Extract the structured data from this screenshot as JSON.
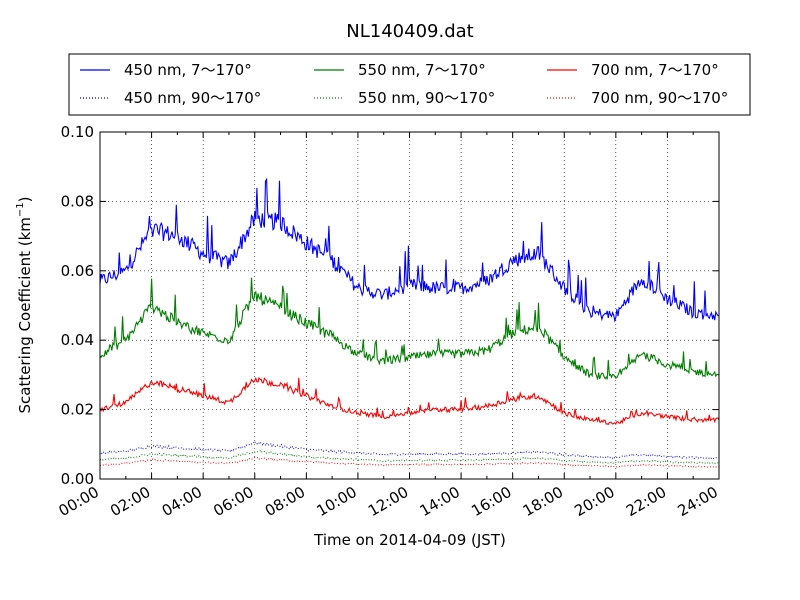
{
  "chart_data": {
    "type": "line",
    "title": "NL140409.dat",
    "xlabel": "Time on 2014-04-09 (JST)",
    "ylabel_main": "Scattering Coefficient (km",
    "ylabel_sup": "−1",
    "ylabel_end": ")",
    "xlim": [
      0,
      24
    ],
    "ylim": [
      0,
      0.1
    ],
    "x_ticks": [
      "00:00",
      "02:00",
      "04:00",
      "06:00",
      "08:00",
      "10:00",
      "12:00",
      "14:00",
      "16:00",
      "18:00",
      "20:00",
      "22:00",
      "24:00"
    ],
    "y_ticks": [
      "0.00",
      "0.02",
      "0.04",
      "0.06",
      "0.08",
      "0.10"
    ],
    "grid": true,
    "legend_position": "top",
    "x": [
      0,
      1,
      2,
      3,
      4,
      5,
      6,
      7,
      8,
      9,
      10,
      11,
      12,
      13,
      14,
      15,
      16,
      17,
      18,
      19,
      20,
      21,
      22,
      23,
      24
    ],
    "series": [
      {
        "name": "450 nm, 7～170°",
        "color": "#0000ff",
        "style": "solid",
        "values": [
          0.057,
          0.06,
          0.072,
          0.07,
          0.065,
          0.062,
          0.075,
          0.074,
          0.068,
          0.063,
          0.055,
          0.053,
          0.056,
          0.055,
          0.055,
          0.057,
          0.063,
          0.065,
          0.055,
          0.048,
          0.047,
          0.058,
          0.052,
          0.048,
          0.047
        ]
      },
      {
        "name": "450 nm, 90～170°",
        "color": "#0000ff",
        "style": "dotted",
        "values": [
          0.0075,
          0.008,
          0.0095,
          0.009,
          0.0085,
          0.008,
          0.0105,
          0.0095,
          0.0085,
          0.008,
          0.0075,
          0.007,
          0.0072,
          0.0072,
          0.0072,
          0.0072,
          0.0075,
          0.0078,
          0.007,
          0.0065,
          0.0062,
          0.007,
          0.0065,
          0.0062,
          0.006
        ]
      },
      {
        "name": "550 nm, 7～170°",
        "color": "#007f00",
        "style": "solid",
        "values": [
          0.036,
          0.04,
          0.05,
          0.045,
          0.042,
          0.04,
          0.053,
          0.049,
          0.045,
          0.041,
          0.036,
          0.034,
          0.035,
          0.036,
          0.036,
          0.037,
          0.042,
          0.044,
          0.035,
          0.03,
          0.029,
          0.036,
          0.033,
          0.031,
          0.03
        ]
      },
      {
        "name": "550 nm, 90～170°",
        "color": "#007f00",
        "style": "dotted",
        "values": [
          0.0055,
          0.006,
          0.0072,
          0.0068,
          0.0064,
          0.006,
          0.008,
          0.0072,
          0.0064,
          0.006,
          0.0056,
          0.0052,
          0.0054,
          0.0054,
          0.0054,
          0.0055,
          0.0058,
          0.006,
          0.0053,
          0.0049,
          0.0047,
          0.0053,
          0.0049,
          0.0047,
          0.0045
        ]
      },
      {
        "name": "700 nm, 7～170°",
        "color": "#ff0000",
        "style": "solid",
        "values": [
          0.02,
          0.022,
          0.028,
          0.026,
          0.024,
          0.022,
          0.029,
          0.027,
          0.024,
          0.021,
          0.019,
          0.018,
          0.019,
          0.02,
          0.02,
          0.021,
          0.023,
          0.024,
          0.019,
          0.017,
          0.016,
          0.019,
          0.018,
          0.017,
          0.017
        ]
      },
      {
        "name": "700 nm, 90～170°",
        "color": "#ff0000",
        "style": "dotted",
        "values": [
          0.004,
          0.0045,
          0.0055,
          0.0052,
          0.0048,
          0.0045,
          0.006,
          0.0055,
          0.005,
          0.0046,
          0.0043,
          0.004,
          0.0042,
          0.0042,
          0.0042,
          0.0043,
          0.0045,
          0.0046,
          0.0041,
          0.0038,
          0.0036,
          0.0041,
          0.0038,
          0.0036,
          0.0035
        ]
      }
    ]
  }
}
